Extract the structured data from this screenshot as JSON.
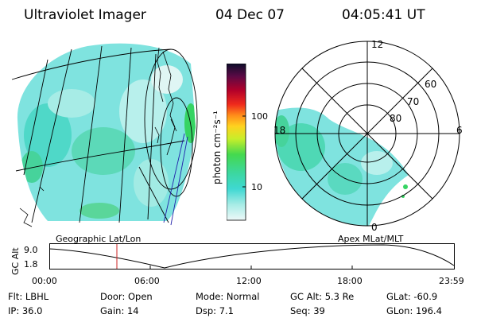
{
  "header": {
    "instrument": "Ultraviolet Imager",
    "date": "04 Dec 07",
    "time": "04:05:41 UT"
  },
  "colorbar": {
    "unit_label": "photon cm⁻²s⁻¹",
    "tick_labels": [
      "100",
      "10"
    ]
  },
  "panels": {
    "geographic_label": "Geographic Lat/Lon",
    "polar_label": "Apex MLat/MLT"
  },
  "polar_plot": {
    "mlt_labels": [
      "12",
      "18",
      "6",
      "0"
    ],
    "lat_labels": [
      "60",
      "70",
      "80"
    ]
  },
  "altitude_plot": {
    "ylabel": "GC Alt",
    "y_ticks": [
      "9.0",
      "1.8"
    ],
    "x_ticks": [
      "00:00",
      "06:00",
      "12:00",
      "18:00",
      "23:59"
    ]
  },
  "status": {
    "row1": [
      {
        "label": "Flt:",
        "value": "LBHL"
      },
      {
        "label": "Door:",
        "value": "Open"
      },
      {
        "label": "Mode:",
        "value": "Normal"
      },
      {
        "label": "GC Alt:",
        "value": "5.3 Re"
      },
      {
        "label": "GLat:",
        "value": "-60.9"
      }
    ],
    "row2": [
      {
        "label": "IP:",
        "value": "36.0"
      },
      {
        "label": "Gain:",
        "value": "14"
      },
      {
        "label": "Dsp:",
        "value": "7.1"
      },
      {
        "label": "Seq:",
        "value": "39"
      },
      {
        "label": "GLon:",
        "value": "196.4"
      }
    ]
  }
}
